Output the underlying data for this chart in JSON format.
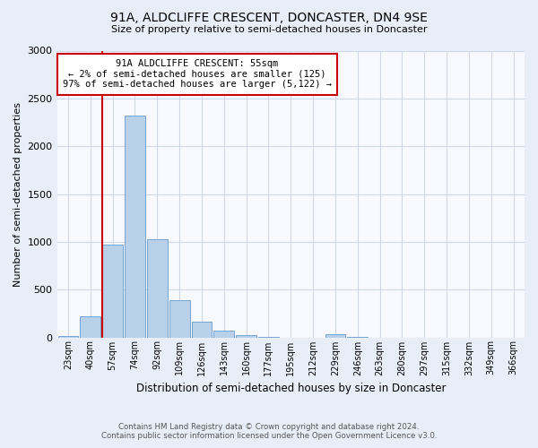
{
  "title": "91A, ALDCLIFFE CRESCENT, DONCASTER, DN4 9SE",
  "subtitle": "Size of property relative to semi-detached houses in Doncaster",
  "bar_labels": [
    "23sqm",
    "40sqm",
    "57sqm",
    "74sqm",
    "92sqm",
    "109sqm",
    "126sqm",
    "143sqm",
    "160sqm",
    "177sqm",
    "195sqm",
    "212sqm",
    "229sqm",
    "246sqm",
    "263sqm",
    "280sqm",
    "297sqm",
    "315sqm",
    "332sqm",
    "349sqm",
    "366sqm"
  ],
  "bar_values": [
    15,
    220,
    970,
    2320,
    1030,
    385,
    160,
    75,
    25,
    5,
    0,
    0,
    35,
    5,
    0,
    0,
    0,
    0,
    0,
    0,
    0
  ],
  "bar_color": "#b8d0ea",
  "bar_edge_color": "#6699cc",
  "ylim": [
    0,
    3000
  ],
  "yticks": [
    0,
    500,
    1000,
    1500,
    2000,
    2500,
    3000
  ],
  "ylabel": "Number of semi-detached properties",
  "xlabel": "Distribution of semi-detached houses by size in Doncaster",
  "annotation_title": "91A ALDCLIFFE CRESCENT: 55sqm",
  "annotation_line1": "← 2% of semi-detached houses are smaller (125)",
  "annotation_line2": "97% of semi-detached houses are larger (5,122) →",
  "vline_x_index": 2,
  "vline_color": "#cc0000",
  "annotation_box_edge": "#cc0000",
  "footer_line1": "Contains HM Land Registry data © Crown copyright and database right 2024.",
  "footer_line2": "Contains public sector information licensed under the Open Government Licence v3.0.",
  "bg_color": "#e8eef8",
  "plot_bg_color": "#f8f9ff",
  "grid_color": "#d0d8e8"
}
